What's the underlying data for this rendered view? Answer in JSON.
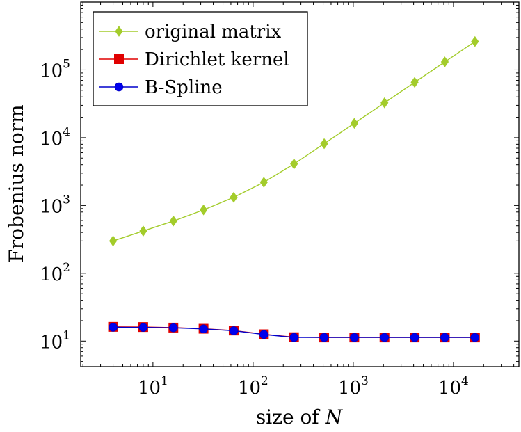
{
  "chart_data": {
    "type": "line",
    "xlabel": {
      "text": "size of ",
      "var": "N"
    },
    "ylabel": "Frobenius norm",
    "xscale": "log",
    "yscale": "log",
    "xlim": [
      1.9,
      45000
    ],
    "ylim": [
      4.2,
      1000000
    ],
    "x_ticks": [
      {
        "value": 10,
        "base": "10",
        "exp": "1"
      },
      {
        "value": 100,
        "base": "10",
        "exp": "2"
      },
      {
        "value": 1000,
        "base": "10",
        "exp": "3"
      },
      {
        "value": 10000,
        "base": "10",
        "exp": "4"
      }
    ],
    "y_ticks": [
      {
        "value": 10,
        "base": "10",
        "exp": "1"
      },
      {
        "value": 100,
        "base": "10",
        "exp": "2"
      },
      {
        "value": 1000,
        "base": "10",
        "exp": "3"
      },
      {
        "value": 10000,
        "base": "10",
        "exp": "4"
      },
      {
        "value": 100000,
        "base": "10",
        "exp": "5"
      }
    ],
    "legend_position": "top-left",
    "grid": false,
    "x": [
      4,
      8,
      16,
      32,
      64,
      128,
      256,
      512,
      1024,
      2048,
      4096,
      8192,
      16384
    ],
    "series": [
      {
        "name": "original matrix",
        "marker": "diamond",
        "color": "#a3cc2b",
        "marker_color": "#a3cc2b",
        "values": [
          300,
          420,
          590,
          860,
          1320,
          2200,
          4100,
          8150,
          16300,
          32700,
          65500,
          131000,
          262000
        ]
      },
      {
        "name": "Dirichlet kernel",
        "marker": "square",
        "color": "#e00000",
        "marker_color": "#e00000",
        "values": [
          16.2,
          16.1,
          15.8,
          15.2,
          14.3,
          12.6,
          11.4,
          11.3,
          11.3,
          11.3,
          11.3,
          11.3,
          11.3
        ]
      },
      {
        "name": "B-Spline",
        "marker": "circle",
        "color": "#0000cc",
        "marker_color": "#0000ee",
        "values": [
          16.0,
          15.9,
          15.7,
          15.1,
          14.2,
          12.5,
          11.3,
          11.3,
          11.3,
          11.3,
          11.3,
          11.3,
          11.3
        ]
      }
    ]
  }
}
